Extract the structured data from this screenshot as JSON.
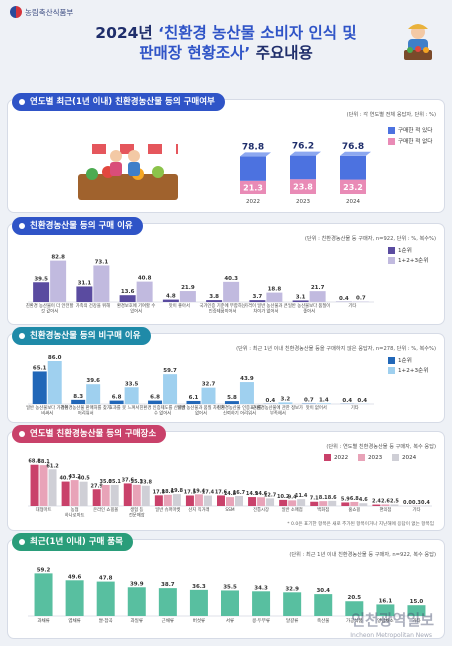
{
  "ministry": "농림축산식품부",
  "title": {
    "line1_prefix": "2024년 ",
    "line1_quote": "‘친환경 농산물 소비자 인식 및",
    "line2_quote": "판매장 현황조사’",
    "line2_suffix": " 주요내용"
  },
  "watermark": {
    "main": "인천광역일보",
    "sub": "Incheon Metropolitan News"
  },
  "colors": {
    "navy": "#1f2e6b",
    "blue": "#2f54c7",
    "pink": "#c9416a",
    "teal": "#1f8aa8",
    "green": "#2a9d7a"
  },
  "sections": {
    "s1": {
      "header": "연도별 최근(1년 이내) 친환경농산물 등의 구매여부",
      "unit": "(단위 : 각 연도별 전체 응답자, 단위 : %)"
    },
    "s2": {
      "header": "친환경농산물 등의 구매 이유",
      "unit": "(단위 : 친환경농산물 등 구매자, n=922, 단위 : %, 복수%)"
    },
    "s3": {
      "header": "친환경농산물 등의 비구매 이유",
      "unit": "(단위 : 최근 1년 이내 친환경농산물 등을 구매하지 않은 응답자, n=278, 단위 : %, 복수%)"
    },
    "s4": {
      "header": "연도별 친환경농산물 등의 구매장소",
      "unit": "(단위 : 연도별 친환경농산물 등 구매자, 복수 응답)",
      "note": "* 0.0은 표기한 항목은 새로 추가된 항목이거나 지난해에 응답이 없는 항목임"
    },
    "s5": {
      "header": "최근(1년 이내) 구매 품목",
      "unit": "(단위 : 최근 1년 이내 친환경농산물 등 구매자, n=922, 복수 응답)"
    }
  },
  "chart_data": [
    {
      "type": "bar",
      "id": "purchase_by_year",
      "categories": [
        "2022",
        "2023",
        "2024"
      ],
      "series": [
        {
          "name": "구매한 적 있다",
          "values": [
            78.8,
            76.2,
            76.8
          ]
        },
        {
          "name": "구매한 적 없다",
          "values": [
            21.3,
            23.8,
            23.2
          ]
        }
      ]
    },
    {
      "type": "bar",
      "id": "purchase_reasons",
      "categories": [
        "친환경 농산물이 더 안전할 것 같아서",
        "가족의 건강을 위해",
        "환경보호에 기여할 수 있어서",
        "맛이 좋아서",
        "국가인증 기준에 부합하는 인증제품이어서",
        "가격이 일반 농산물과 큰 차이가 없어서",
        "일반 농산물보다 품질이 좋아서",
        "기타"
      ],
      "series": [
        {
          "name": "1순위",
          "values": [
            39.5,
            31.1,
            13.6,
            4.8,
            3.8,
            3.7,
            3.1,
            0.4
          ]
        },
        {
          "name": "1+2+3순위",
          "values": [
            82.8,
            73.1,
            40.8,
            21.9,
            40.3,
            18.8,
            21.7,
            0.7
          ]
        }
      ]
    },
    {
      "type": "bar",
      "id": "nonpurchase_reasons",
      "categories": [
        "일반 농산물보다 가격이 비싸서",
        "친환경농산물 판매처를 찾기 어려워서",
        "효과를 못 느껴서",
        "친환경 인증제도를 신뢰할 수 없어서",
        "일반 농산물과 품질 차이가 없어서",
        "친환경농산물 인증표시를 신뢰하기 어려워서",
        "친환경농산물에 관한 정보가 부족해서",
        "맛이 없어서",
        "기타"
      ],
      "series": [
        {
          "name": "1순위",
          "values": [
            65.1,
            8.3,
            6.8,
            6.8,
            6.1,
            5.8,
            0.4,
            0.7,
            0.4
          ]
        },
        {
          "name": "1+2+3순위",
          "values": [
            86.0,
            39.6,
            33.5,
            59.7,
            32.7,
            43.9,
            3.2,
            1.4,
            0.4
          ]
        }
      ]
    },
    {
      "type": "bar",
      "id": "purchase_places",
      "categories": [
        "대형마트",
        "농협 하나로마트",
        "온라인 쇼핑몰",
        "생협 등 전문매장",
        "일반 슈퍼마켓",
        "산지 직거래",
        "SSM",
        "전통시장",
        "일반 소매점",
        "백화점",
        "홈쇼핑",
        "편의점",
        "기타"
      ],
      "series": [
        {
          "name": "2022",
          "values": [
            68.8,
            40.7,
            27.9,
            37.6,
            17.8,
            17.5,
            17.6,
            14.9,
            10.2,
            7.1,
            5.9,
            2.4,
            0.0
          ]
        },
        {
          "name": "2023",
          "values": [
            68.1,
            43.2,
            35.0,
            35.3,
            18.6,
            19.4,
            14.8,
            14.6,
            9.4,
            8.1,
            6.8,
            2.6,
            0.3
          ]
        },
        {
          "name": "2024",
          "values": [
            61.2,
            40.5,
            35.1,
            33.8,
            19.8,
            17.4,
            16.7,
            12.7,
            11.4,
            8.6,
            4.6,
            2.5,
            0.4
          ]
        }
      ]
    },
    {
      "type": "bar",
      "id": "purchased_items",
      "categories": [
        "과채류",
        "엽채류",
        "쌀·잡곡",
        "과일류",
        "근채류",
        "버섯류",
        "서류",
        "콩·두부류",
        "달걀류",
        "축산물",
        "가공식품",
        "양념채소",
        "기타"
      ],
      "values": [
        59.2,
        49.6,
        47.8,
        39.9,
        38.7,
        36.3,
        35.5,
        34.3,
        32.9,
        30.4,
        20.5,
        16.1,
        15.0
      ]
    }
  ]
}
